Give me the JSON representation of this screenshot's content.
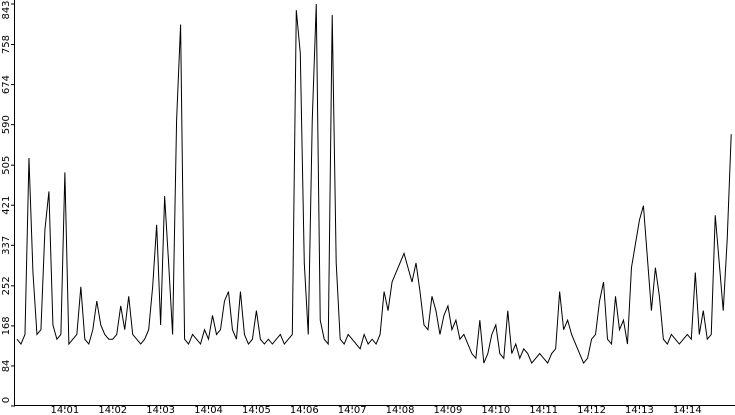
{
  "chart_data": {
    "type": "line",
    "color": "#000000",
    "categories": [
      null,
      null,
      null,
      null,
      null,
      null,
      null,
      null,
      null,
      null,
      null,
      null,
      "14:01",
      null,
      null,
      null,
      null,
      null,
      null,
      null,
      null,
      null,
      null,
      null,
      "14:02",
      null,
      null,
      null,
      null,
      null,
      null,
      null,
      null,
      null,
      null,
      null,
      "14:03",
      null,
      null,
      null,
      null,
      null,
      null,
      null,
      null,
      null,
      null,
      null,
      "14:04",
      null,
      null,
      null,
      null,
      null,
      null,
      null,
      null,
      null,
      null,
      null,
      "14:05",
      null,
      null,
      null,
      null,
      null,
      null,
      null,
      null,
      null,
      null,
      null,
      "14:06",
      null,
      null,
      null,
      null,
      null,
      null,
      null,
      null,
      null,
      null,
      null,
      "14:07",
      null,
      null,
      null,
      null,
      null,
      null,
      null,
      null,
      null,
      null,
      null,
      "14:08",
      null,
      null,
      null,
      null,
      null,
      null,
      null,
      null,
      null,
      null,
      null,
      "14:09",
      null,
      null,
      null,
      null,
      null,
      null,
      null,
      null,
      null,
      null,
      null,
      "14:10",
      null,
      null,
      null,
      null,
      null,
      null,
      null,
      null,
      null,
      null,
      null,
      "14:11",
      null,
      null,
      null,
      null,
      null,
      null,
      null,
      null,
      null,
      null,
      null,
      "14:12",
      null,
      null,
      null,
      null,
      null,
      null,
      null,
      null,
      null,
      null,
      null,
      "14:13",
      null,
      null,
      null,
      null,
      null,
      null,
      null,
      null,
      null,
      null,
      null,
      "14:14",
      null,
      null,
      null,
      null,
      null,
      null,
      null,
      null,
      null,
      null,
      null
    ],
    "values": [
      140,
      130,
      150,
      520,
      280,
      150,
      160,
      370,
      450,
      170,
      140,
      150,
      490,
      130,
      140,
      150,
      250,
      140,
      130,
      160,
      220,
      170,
      150,
      140,
      140,
      150,
      210,
      160,
      230,
      150,
      140,
      130,
      140,
      160,
      250,
      380,
      170,
      440,
      300,
      150,
      600,
      800,
      140,
      130,
      150,
      140,
      130,
      160,
      140,
      190,
      150,
      160,
      220,
      240,
      160,
      140,
      240,
      150,
      130,
      140,
      200,
      140,
      130,
      140,
      130,
      140,
      150,
      130,
      140,
      150,
      830,
      740,
      300,
      150,
      600,
      843,
      180,
      140,
      130,
      820,
      300,
      140,
      130,
      150,
      140,
      130,
      120,
      150,
      130,
      140,
      130,
      150,
      240,
      200,
      260,
      280,
      300,
      320,
      290,
      260,
      300,
      240,
      170,
      160,
      230,
      200,
      150,
      190,
      210,
      160,
      180,
      140,
      150,
      130,
      110,
      100,
      180,
      90,
      110,
      150,
      170,
      110,
      100,
      200,
      110,
      130,
      100,
      120,
      110,
      90,
      100,
      110,
      100,
      90,
      110,
      120,
      240,
      160,
      180,
      150,
      130,
      110,
      90,
      100,
      140,
      150,
      220,
      260,
      140,
      130,
      230,
      160,
      180,
      130,
      290,
      340,
      390,
      420,
      310,
      200,
      290,
      230,
      140,
      130,
      150,
      140,
      130,
      140,
      150,
      140,
      280,
      150,
      200,
      140,
      150,
      400,
      300,
      200,
      350,
      570
    ],
    "ylim": [
      0,
      843
    ],
    "yticks": [
      0,
      84,
      168,
      252,
      337,
      421,
      505,
      590,
      674,
      758,
      843
    ]
  }
}
